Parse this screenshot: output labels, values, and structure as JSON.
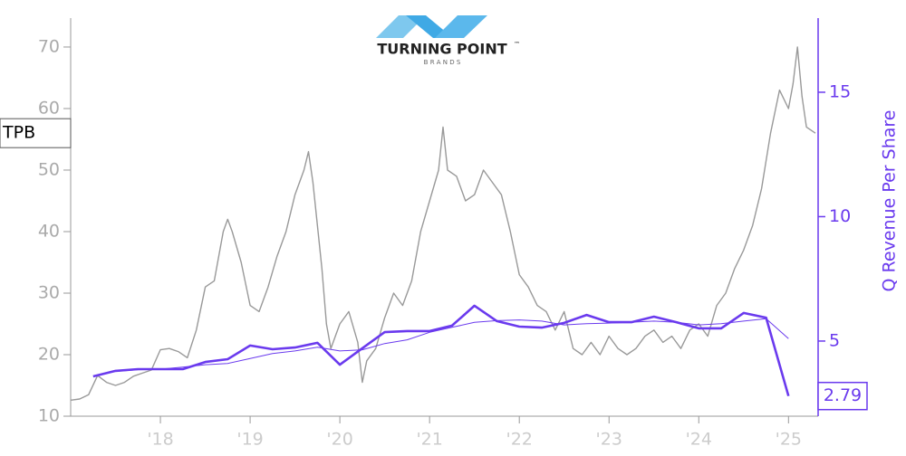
{
  "chart_data": {
    "type": "line",
    "logo": {
      "name": "TURNING POINT",
      "mark": "™",
      "sub": "B R A N D S"
    },
    "y2_label": "Q Revenue Per Share",
    "xlim": [
      2017.0,
      2025.33
    ],
    "xticks": [
      {
        "value": 2018,
        "label": "'18"
      },
      {
        "value": 2019,
        "label": "'19"
      },
      {
        "value": 2020,
        "label": "'20"
      },
      {
        "value": 2021,
        "label": "'21"
      },
      {
        "value": 2022,
        "label": "'22"
      },
      {
        "value": 2023,
        "label": "'23"
      },
      {
        "value": 2024,
        "label": "'24"
      },
      {
        "value": 2025,
        "label": "'25"
      }
    ],
    "ylim": [
      10,
      74.7
    ],
    "yticks": [
      10,
      20,
      30,
      40,
      50,
      60,
      70
    ],
    "y2lim": [
      1.98,
      17.98
    ],
    "y2ticks": [
      5,
      10,
      15
    ],
    "series": [
      {
        "name": "TPB",
        "color": "#999999",
        "width": 1.4,
        "axis": "y",
        "x": [
          2017.0,
          2017.1,
          2017.2,
          2017.3,
          2017.4,
          2017.5,
          2017.6,
          2017.7,
          2017.8,
          2017.9,
          2018.0,
          2018.1,
          2018.2,
          2018.3,
          2018.4,
          2018.5,
          2018.6,
          2018.7,
          2018.75,
          2018.8,
          2018.9,
          2019.0,
          2019.1,
          2019.2,
          2019.3,
          2019.4,
          2019.5,
          2019.6,
          2019.65,
          2019.7,
          2019.8,
          2019.85,
          2019.9,
          2020.0,
          2020.1,
          2020.2,
          2020.25,
          2020.3,
          2020.4,
          2020.5,
          2020.6,
          2020.7,
          2020.8,
          2020.9,
          2021.0,
          2021.1,
          2021.15,
          2021.2,
          2021.3,
          2021.4,
          2021.5,
          2021.6,
          2021.7,
          2021.8,
          2021.9,
          2022.0,
          2022.1,
          2022.2,
          2022.3,
          2022.4,
          2022.5,
          2022.6,
          2022.7,
          2022.8,
          2022.9,
          2023.0,
          2023.1,
          2023.2,
          2023.3,
          2023.4,
          2023.5,
          2023.6,
          2023.7,
          2023.8,
          2023.9,
          2024.0,
          2024.1,
          2024.2,
          2024.3,
          2024.4,
          2024.5,
          2024.6,
          2024.7,
          2024.8,
          2024.9,
          2025.0,
          2025.05,
          2025.1,
          2025.15,
          2025.2,
          2025.3
        ],
        "values": [
          12.6,
          12.8,
          13.5,
          16.6,
          15.5,
          15.0,
          15.5,
          16.5,
          17.0,
          17.5,
          20.8,
          21.0,
          20.5,
          19.5,
          24,
          31,
          32,
          40,
          42,
          40,
          35,
          28,
          27,
          31,
          36,
          40,
          46,
          50,
          53,
          48,
          34,
          25,
          21,
          25,
          27,
          22,
          15.5,
          19,
          21,
          26,
          30,
          28,
          32,
          40,
          45,
          50,
          57,
          50,
          49,
          45,
          46,
          50,
          48,
          46,
          40,
          33,
          31,
          28,
          27,
          24,
          27,
          21,
          20,
          22,
          20,
          23,
          21,
          20,
          21,
          23,
          24,
          22,
          23,
          21,
          24,
          25,
          23,
          28,
          30,
          34,
          37,
          41,
          47,
          56,
          63,
          60,
          64,
          70,
          62,
          57,
          56
        ],
        "end_label": "left"
      },
      {
        "color": "#6a3aee",
        "width": 2.6,
        "axis": "y2",
        "x": [
          2017.25,
          2017.5,
          2017.75,
          2018.0,
          2018.25,
          2018.5,
          2018.75,
          2019.0,
          2019.25,
          2019.5,
          2019.75,
          2020.0,
          2020.25,
          2020.5,
          2020.75,
          2021.0,
          2021.25,
          2021.5,
          2021.75,
          2022.0,
          2022.25,
          2022.5,
          2022.75,
          2023.0,
          2023.25,
          2023.5,
          2023.75,
          2024.0,
          2024.25,
          2024.5,
          2024.75,
          2025.0
        ],
        "values": [
          3.58,
          3.8,
          3.87,
          3.87,
          3.87,
          4.16,
          4.27,
          4.82,
          4.67,
          4.74,
          4.93,
          4.05,
          4.71,
          5.36,
          5.4,
          5.4,
          5.62,
          6.42,
          5.8,
          5.58,
          5.54,
          5.73,
          6.05,
          5.76,
          5.76,
          5.98,
          5.76,
          5.51,
          5.51,
          6.13,
          5.94,
          2.79
        ],
        "end_label": "right"
      },
      {
        "color": "#6a3aee",
        "width": 1,
        "axis": "y2",
        "x": [
          2017.5,
          2017.75,
          2018.0,
          2018.25,
          2018.5,
          2018.75,
          2019.0,
          2019.25,
          2019.5,
          2019.75,
          2020.0,
          2020.25,
          2020.5,
          2020.75,
          2021.0,
          2021.25,
          2021.5,
          2021.75,
          2022.0,
          2022.25,
          2022.5,
          2022.75,
          2023.0,
          2023.25,
          2023.5,
          2023.75,
          2024.0,
          2024.25,
          2024.5,
          2024.75,
          2025.0
        ],
        "values": [
          3.78,
          3.85,
          3.87,
          3.95,
          4.05,
          4.1,
          4.3,
          4.5,
          4.6,
          4.75,
          4.6,
          4.65,
          4.9,
          5.05,
          5.35,
          5.55,
          5.75,
          5.82,
          5.85,
          5.8,
          5.65,
          5.7,
          5.72,
          5.76,
          5.8,
          5.75,
          5.65,
          5.7,
          5.8,
          5.9,
          5.1
        ]
      }
    ]
  }
}
